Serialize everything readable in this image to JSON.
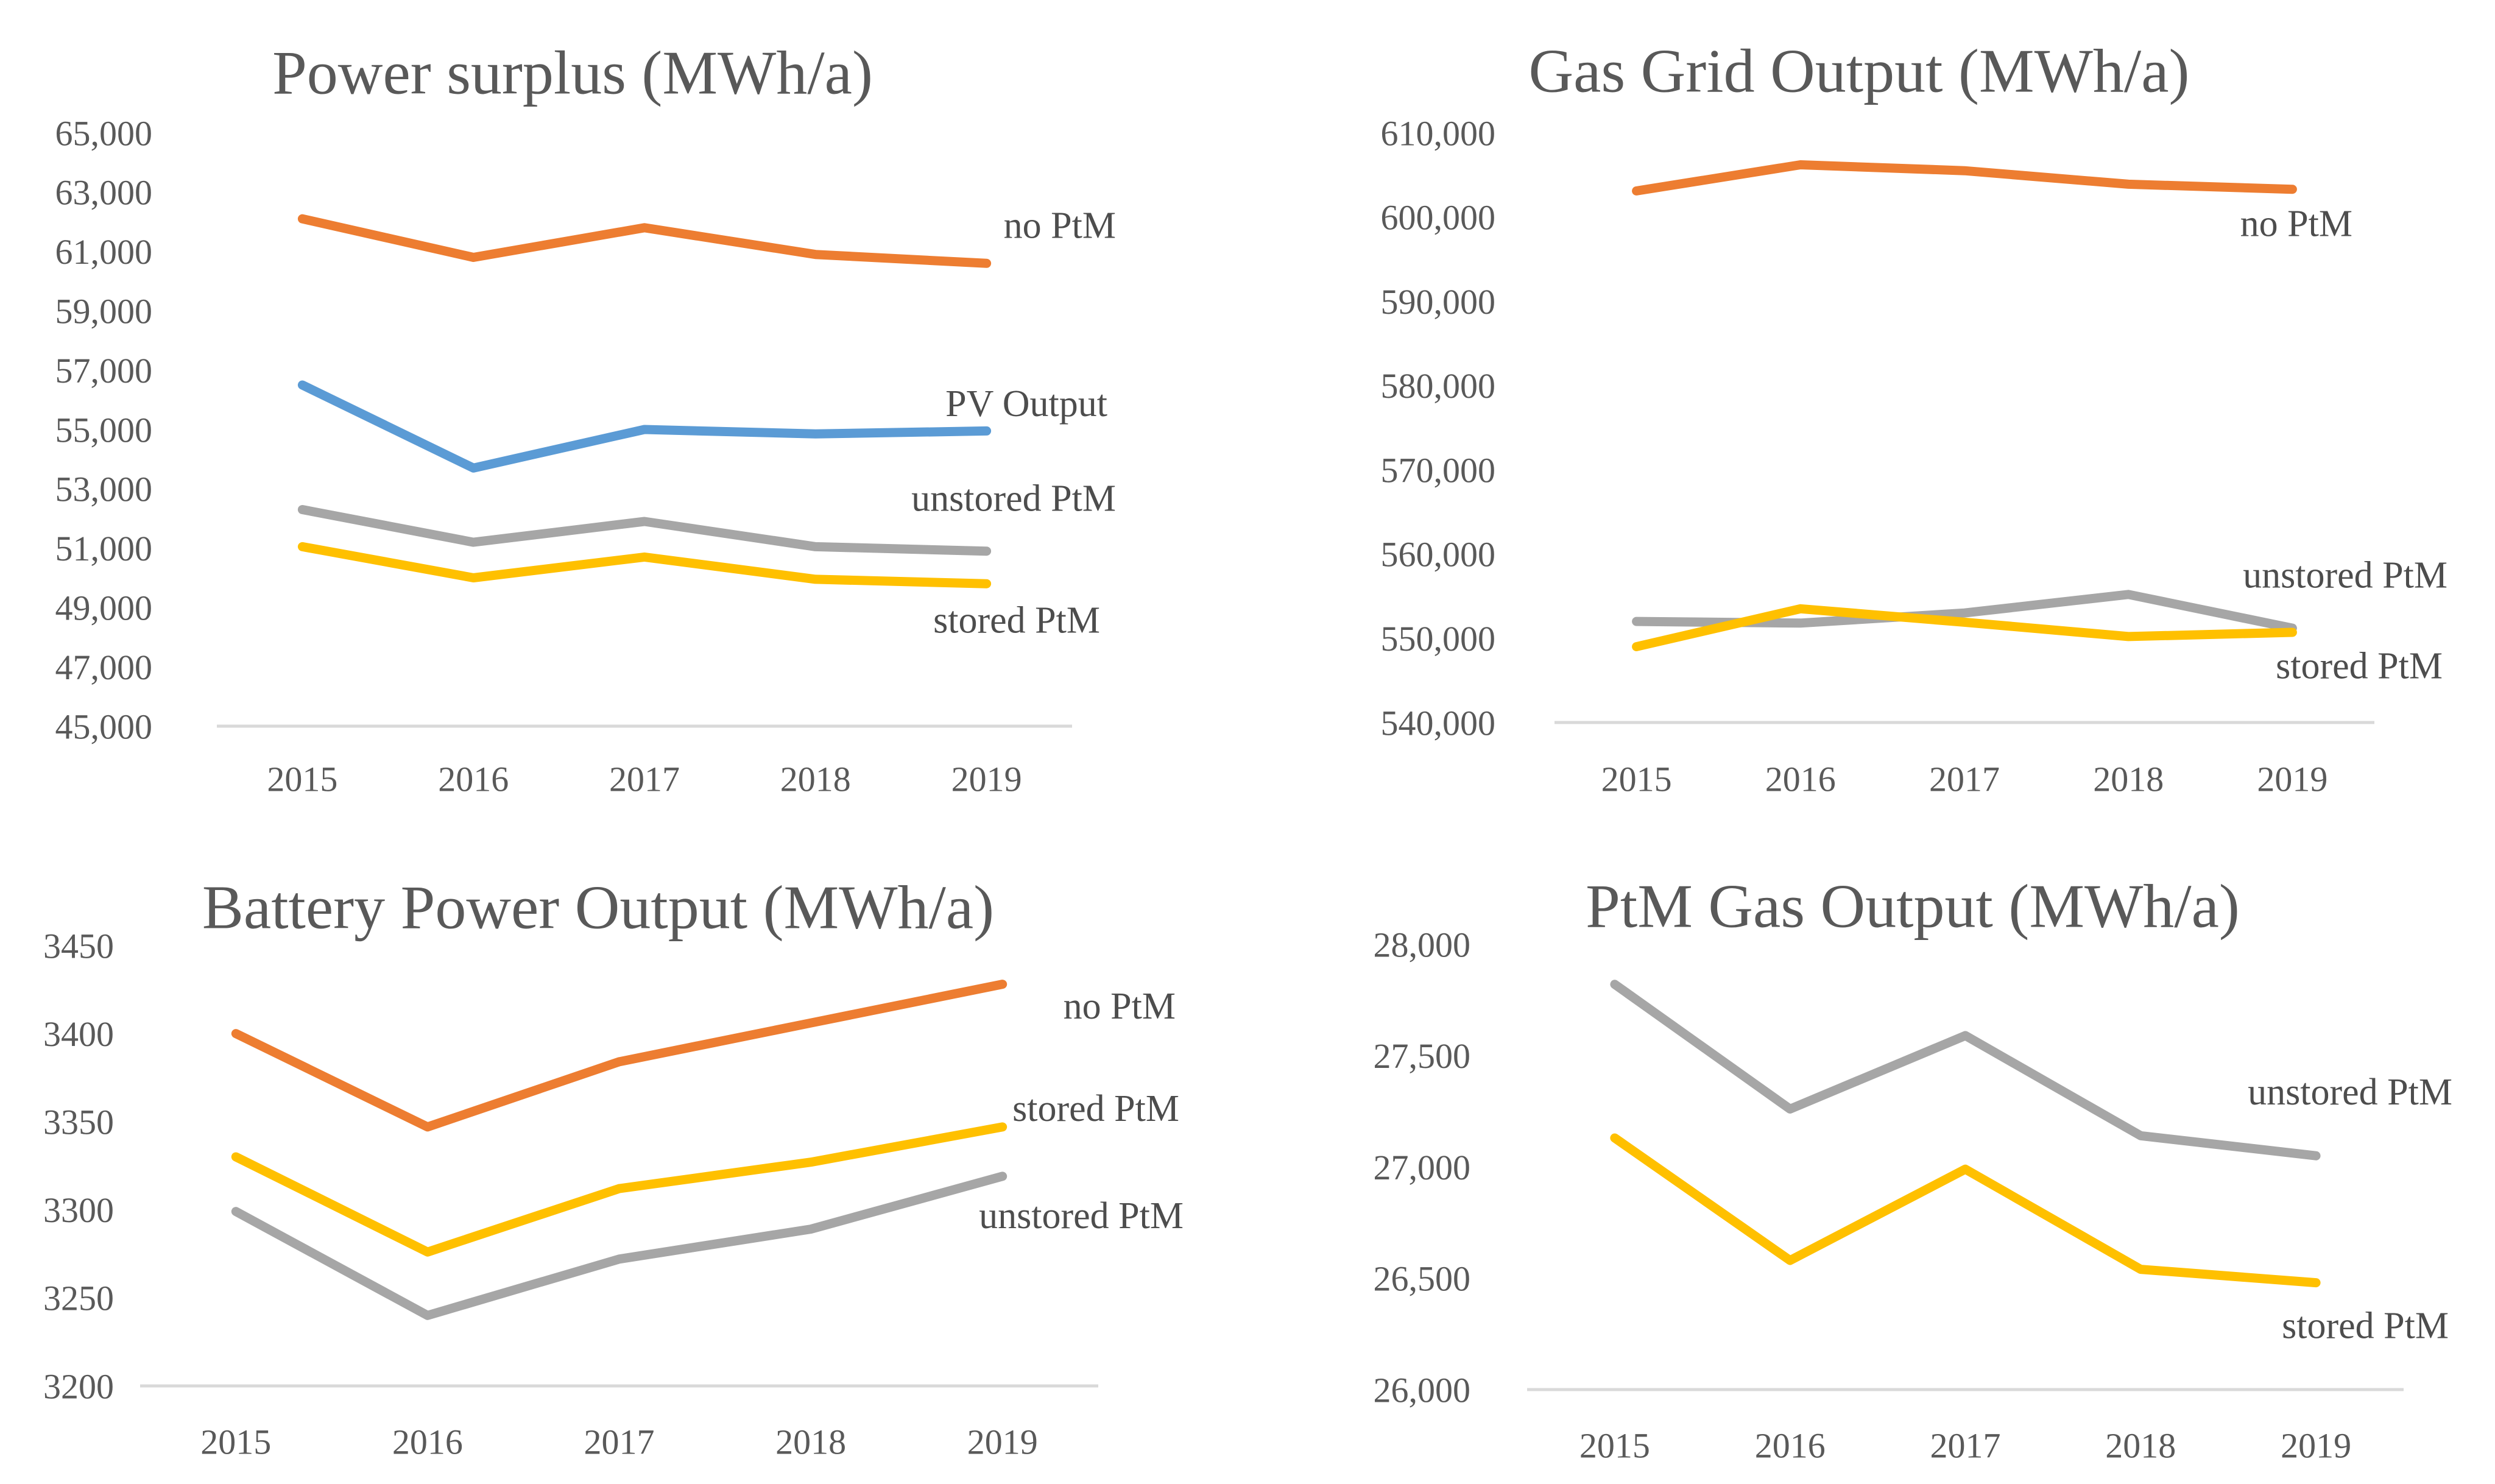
{
  "page": {
    "background": "#ffffff",
    "text_color": "#595959",
    "series_label_color": "#4d4d4d",
    "axis_color": "#D9D9D9"
  },
  "chart_data": [
    {
      "type": "line",
      "title": "Power surplus (MWh/a)",
      "categories": [
        "2015",
        "2016",
        "2017",
        "2018",
        "2019"
      ],
      "xlabel": "",
      "ylabel": "",
      "ylim": [
        45000,
        65000
      ],
      "ytick_step": 2000,
      "yticks": [
        "65,000",
        "63,000",
        "61,000",
        "59,000",
        "57,000",
        "55,000",
        "53,000",
        "51,000",
        "49,000",
        "47,000",
        "45,000"
      ],
      "grid": false,
      "legend_position": "inline-end-labels",
      "series": [
        {
          "name": "no PtM",
          "color": "#ED7D31",
          "values": [
            62100,
            60800,
            61800,
            60900,
            60600
          ]
        },
        {
          "name": "PV Output",
          "color": "#5B9BD5",
          "values": [
            56500,
            53700,
            55000,
            54850,
            54950
          ]
        },
        {
          "name": "unstored PtM",
          "color": "#A6A6A6",
          "values": [
            52300,
            51200,
            51900,
            51050,
            50900
          ]
        },
        {
          "name": "stored PtM",
          "color": "#FFC000",
          "values": [
            51050,
            50000,
            50700,
            49950,
            49800
          ]
        }
      ]
    },
    {
      "type": "line",
      "title": "Gas Grid Output (MWh/a)",
      "categories": [
        "2015",
        "2016",
        "2017",
        "2018",
        "2019"
      ],
      "xlabel": "",
      "ylabel": "",
      "ylim": [
        540000,
        610000
      ],
      "ytick_step": 10000,
      "yticks": [
        "610,000",
        "600,000",
        "590,000",
        "580,000",
        "570,000",
        "560,000",
        "550,000",
        "540,000"
      ],
      "grid": false,
      "legend_position": "inline-end-labels",
      "series": [
        {
          "name": "no PtM",
          "color": "#ED7D31",
          "values": [
            603100,
            606200,
            605500,
            603900,
            603300
          ]
        },
        {
          "name": "unstored PtM",
          "color": "#A6A6A6",
          "values": [
            552000,
            551800,
            553000,
            555200,
            551200
          ]
        },
        {
          "name": "stored PtM",
          "color": "#FFC000",
          "values": [
            549000,
            553500,
            551900,
            550200,
            550700
          ]
        }
      ]
    },
    {
      "type": "line",
      "title": "Battery Power Output (MWh/a)",
      "categories": [
        "2015",
        "2016",
        "2017",
        "2018",
        "2019"
      ],
      "xlabel": "",
      "ylabel": "",
      "ylim": [
        3200,
        3450
      ],
      "ytick_step": 50,
      "yticks": [
        "3450",
        "3400",
        "3350",
        "3300",
        "3250",
        "3200"
      ],
      "grid": false,
      "legend_position": "inline-end-labels",
      "series": [
        {
          "name": "no PtM",
          "color": "#ED7D31",
          "values": [
            3400,
            3347,
            3384,
            3406,
            3428
          ]
        },
        {
          "name": "stored PtM",
          "color": "#FFC000",
          "values": [
            3330,
            3276,
            3312,
            3327,
            3347
          ]
        },
        {
          "name": "unstored PtM",
          "color": "#A6A6A6",
          "values": [
            3299,
            3240,
            3272,
            3289,
            3319
          ]
        }
      ]
    },
    {
      "type": "line",
      "title": "PtM Gas Output (MWh/a)",
      "categories": [
        "2015",
        "2016",
        "2017",
        "2018",
        "2019"
      ],
      "xlabel": "",
      "ylabel": "",
      "ylim": [
        26000,
        28000
      ],
      "ytick_step": 500,
      "yticks": [
        "28,000",
        "27,500",
        "27,000",
        "26,500",
        "26,000"
      ],
      "grid": false,
      "legend_position": "inline-end-labels",
      "series": [
        {
          "name": "unstored PtM",
          "color": "#A6A6A6",
          "values": [
            27820,
            27260,
            27590,
            27140,
            27050
          ]
        },
        {
          "name": "stored PtM",
          "color": "#FFC000",
          "values": [
            27130,
            26580,
            26990,
            26540,
            26480
          ]
        }
      ]
    }
  ]
}
